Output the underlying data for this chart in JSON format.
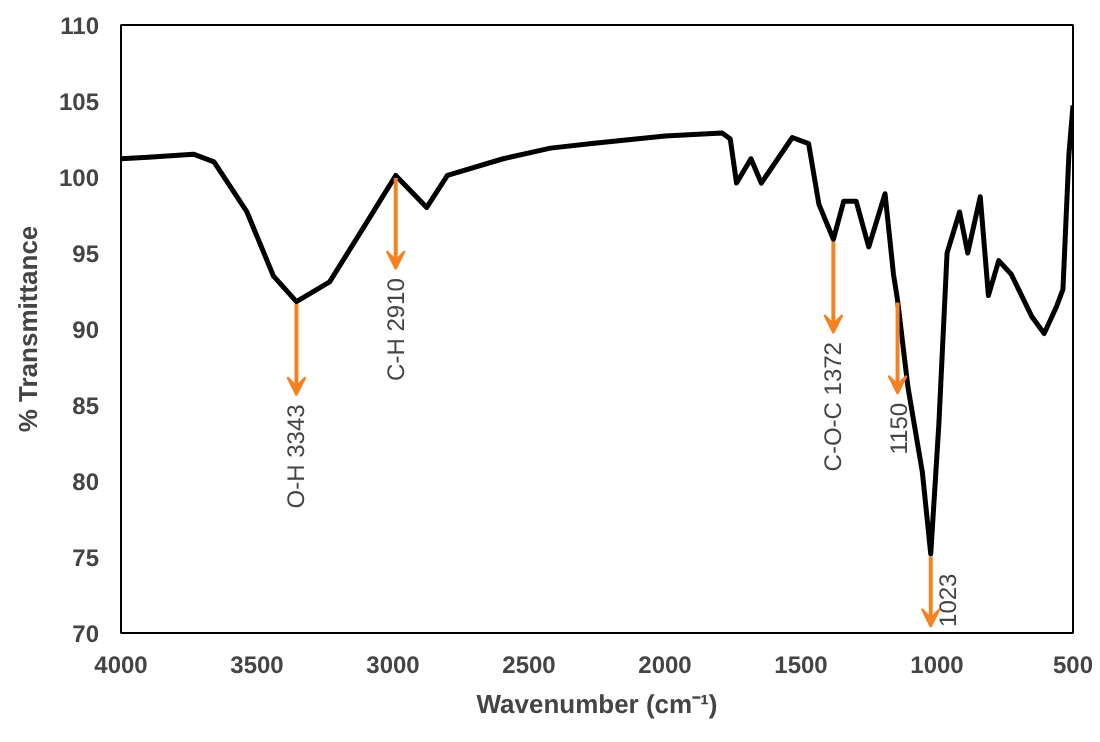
{
  "chart_data": {
    "type": "line",
    "xlabel": "Wavenumber (cm⁻¹)",
    "ylabel": "% Transmittance",
    "xlim": [
      4000,
      500
    ],
    "ylim": [
      70,
      110
    ],
    "xticks": [
      4000,
      3500,
      3000,
      2500,
      2000,
      1500,
      1000,
      500
    ],
    "yticks": [
      70,
      75,
      80,
      85,
      90,
      95,
      100,
      105,
      110
    ],
    "grid": false,
    "marker": "none",
    "line_style": "solid",
    "series": [
      {
        "color": "#000000",
        "x": [
          4000,
          3900,
          3734,
          3658,
          3537,
          3440,
          3355,
          3233,
          3104,
          2990,
          2876,
          2800,
          2595,
          2421,
          2269,
          2000,
          1790,
          1760,
          1737,
          1684,
          1646,
          1532,
          1472,
          1434,
          1381,
          1343,
          1297,
          1251,
          1191,
          1160,
          1145,
          1107,
          1054,
          1023,
          993,
          963,
          917,
          887,
          841,
          811,
          773,
          727,
          651,
          606,
          560,
          537,
          515,
          500
        ],
        "values": [
          101.2,
          101.3,
          101.5,
          101,
          97.7,
          93.5,
          91.8,
          93.1,
          96.8,
          100.1,
          98,
          100.1,
          101.2,
          101.9,
          102.2,
          102.7,
          102.9,
          102.5,
          99.6,
          101.2,
          99.6,
          102.6,
          102.2,
          98.2,
          95.9,
          98.4,
          98.4,
          95.4,
          98.9,
          93.6,
          91.9,
          86.2,
          80.6,
          75.2,
          83.8,
          95.0,
          97.7,
          95.0,
          98.7,
          92.2,
          94.5,
          93.6,
          90.8,
          89.7,
          91.5,
          92.6,
          101.5,
          104.7
        ]
      }
    ],
    "annotations": [
      {
        "text": "O-H 3343",
        "x": 3355,
        "y": 91.8
      },
      {
        "text": "C-H 2910",
        "x": 2990,
        "y": 100.1
      },
      {
        "text": "C-O-C 1372",
        "x": 1381,
        "y": 95.9
      },
      {
        "text": "1150",
        "x": 1145,
        "y": 91.9
      },
      {
        "text": "1023",
        "x": 1023,
        "y": 75.2
      }
    ]
  }
}
